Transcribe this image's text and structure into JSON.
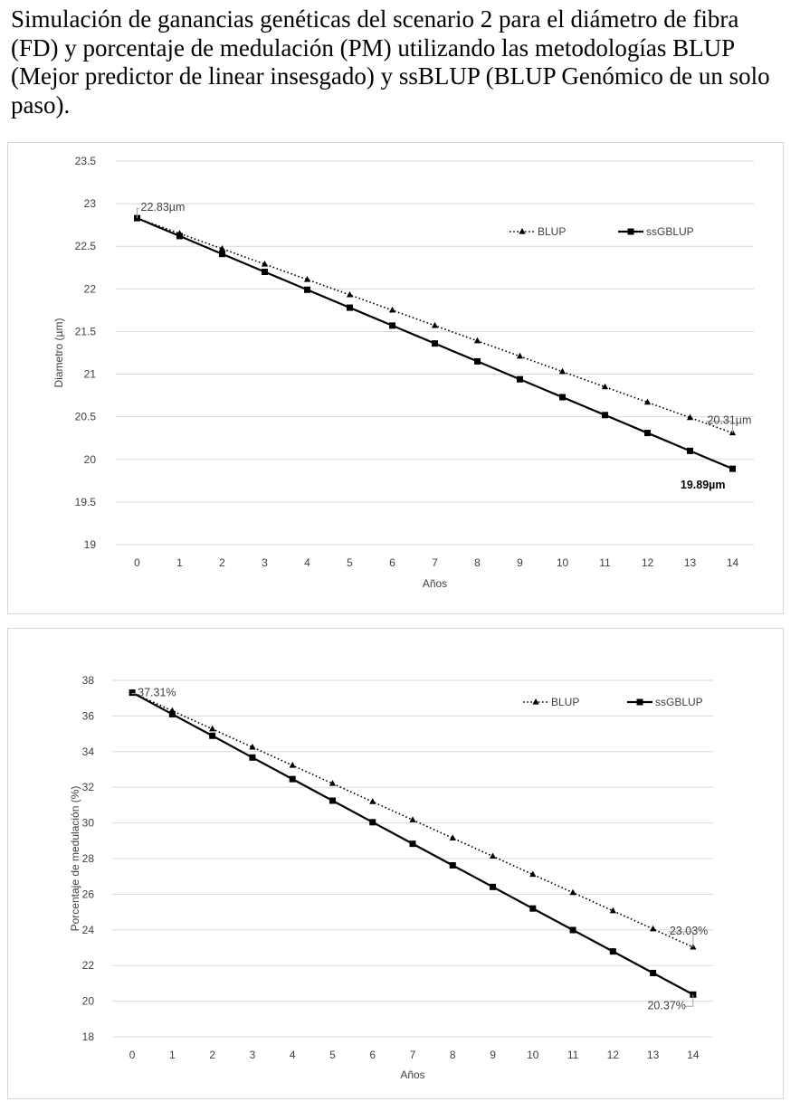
{
  "caption": "Simulación de ganancias genéticas del scenario 2 para el diámetro de fibra (FD) y porcentaje de medulación (PM) utilizando las metodologías BLUP (Mejor predictor de linear insesgado) y ssBLUP (BLUP Genómico de un solo paso).",
  "colors": {
    "line": "#000000",
    "grid": "#d9d9d9",
    "text": "#404040",
    "border": "#d6d6d6"
  },
  "chart_data": [
    {
      "type": "line",
      "xlabel": "Años",
      "ylabel": "Diametro (µm)",
      "x": [
        0,
        1,
        2,
        3,
        4,
        5,
        6,
        7,
        8,
        9,
        10,
        11,
        12,
        13,
        14
      ],
      "ylim": [
        19,
        23.5
      ],
      "yticks": [
        19,
        19.5,
        20,
        20.5,
        21,
        21.5,
        22,
        22.5,
        23,
        23.5
      ],
      "ytick_labels": [
        "19",
        "19.5",
        "20",
        "20.5",
        "21",
        "21.5",
        "22",
        "22.5",
        "23",
        "23.5"
      ],
      "grid": true,
      "legend_position": "top-right",
      "series": [
        {
          "name": "BLUP",
          "style": "dotted",
          "marker": "triangle",
          "values": [
            22.83,
            22.65,
            22.47,
            22.29,
            22.11,
            21.93,
            21.75,
            21.57,
            21.39,
            21.21,
            21.03,
            20.85,
            20.67,
            20.49,
            20.31
          ]
        },
        {
          "name": "ssGBLUP",
          "style": "solid",
          "marker": "square",
          "values": [
            22.83,
            22.62,
            22.41,
            22.2,
            21.99,
            21.78,
            21.57,
            21.36,
            21.15,
            20.94,
            20.73,
            20.52,
            20.31,
            20.1,
            19.89
          ]
        }
      ],
      "annotations": [
        {
          "text": "22.83µm",
          "series": 0,
          "index": 0,
          "bold": false
        },
        {
          "text": "20.31µm",
          "series": 0,
          "index": 14,
          "bold": false
        },
        {
          "text": "19.89µm",
          "series": 1,
          "index": 14,
          "bold": true
        }
      ]
    },
    {
      "type": "line",
      "xlabel": "Años",
      "ylabel": "Porcentaje de medulación (%)",
      "x": [
        0,
        1,
        2,
        3,
        4,
        5,
        6,
        7,
        8,
        9,
        10,
        11,
        12,
        13,
        14
      ],
      "ylim": [
        18,
        38
      ],
      "yticks": [
        18,
        20,
        22,
        24,
        26,
        28,
        30,
        32,
        34,
        36,
        38
      ],
      "ytick_labels": [
        "18",
        "20",
        "22",
        "24",
        "26",
        "28",
        "30",
        "32",
        "34",
        "36",
        "38"
      ],
      "grid": true,
      "legend_position": "top-right",
      "series": [
        {
          "name": "BLUP",
          "style": "dotted",
          "marker": "triangle",
          "values": [
            37.31,
            36.29,
            35.27,
            34.25,
            33.23,
            32.21,
            31.19,
            30.17,
            29.15,
            28.13,
            27.11,
            26.09,
            25.07,
            24.05,
            23.03
          ]
        },
        {
          "name": "ssGBLUP",
          "style": "solid",
          "marker": "square",
          "values": [
            37.31,
            36.1,
            34.89,
            33.67,
            32.46,
            31.25,
            30.04,
            28.83,
            27.62,
            26.41,
            25.2,
            23.99,
            22.79,
            21.58,
            20.37
          ]
        }
      ],
      "annotations": [
        {
          "text": "37.31%",
          "series": 0,
          "index": 0,
          "bold": false
        },
        {
          "text": "23.03%",
          "series": 0,
          "index": 14,
          "bold": false
        },
        {
          "text": "20.37%",
          "series": 1,
          "index": 14,
          "bold": false
        }
      ]
    }
  ]
}
